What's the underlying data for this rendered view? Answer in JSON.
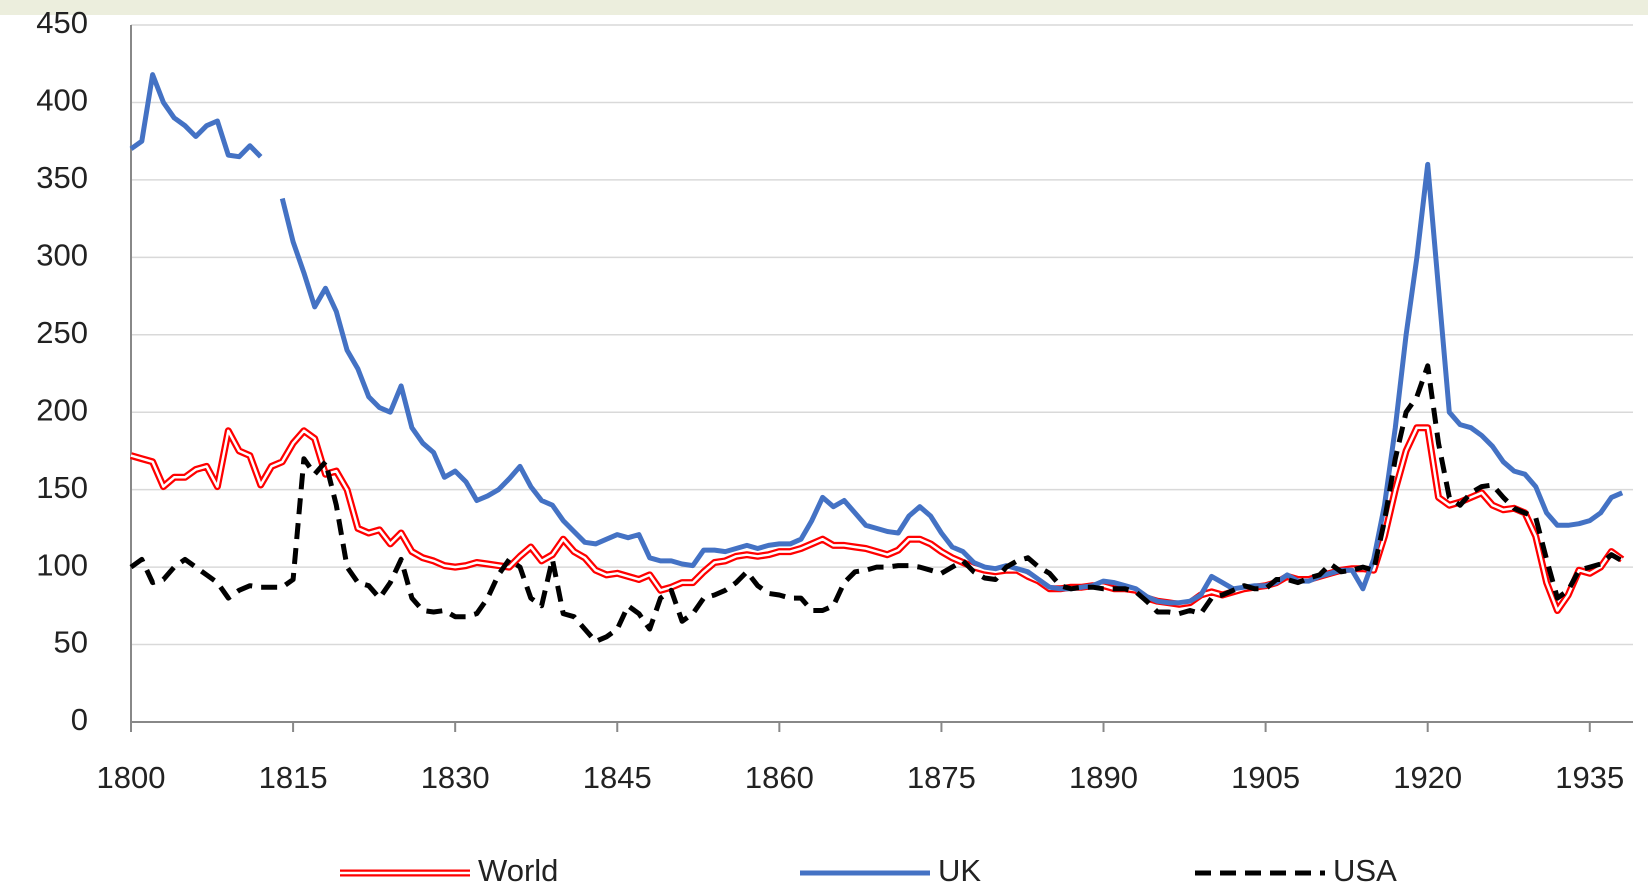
{
  "chart_data": {
    "type": "line",
    "x": [
      1800,
      1801,
      1802,
      1803,
      1804,
      1805,
      1806,
      1807,
      1808,
      1809,
      1810,
      1811,
      1812,
      1813,
      1814,
      1815,
      1816,
      1817,
      1818,
      1819,
      1820,
      1821,
      1822,
      1823,
      1824,
      1825,
      1826,
      1827,
      1828,
      1829,
      1830,
      1831,
      1832,
      1833,
      1834,
      1835,
      1836,
      1837,
      1838,
      1839,
      1840,
      1841,
      1842,
      1843,
      1844,
      1845,
      1846,
      1847,
      1848,
      1849,
      1850,
      1851,
      1852,
      1853,
      1854,
      1855,
      1856,
      1857,
      1858,
      1859,
      1860,
      1861,
      1862,
      1863,
      1864,
      1865,
      1866,
      1867,
      1868,
      1869,
      1870,
      1871,
      1872,
      1873,
      1874,
      1875,
      1876,
      1877,
      1878,
      1879,
      1880,
      1881,
      1882,
      1883,
      1884,
      1885,
      1886,
      1887,
      1888,
      1889,
      1890,
      1891,
      1892,
      1893,
      1894,
      1895,
      1896,
      1897,
      1898,
      1899,
      1900,
      1901,
      1902,
      1903,
      1904,
      1905,
      1906,
      1907,
      1908,
      1909,
      1910,
      1911,
      1912,
      1913,
      1914,
      1915,
      1916,
      1917,
      1918,
      1919,
      1920,
      1921,
      1922,
      1923,
      1924,
      1925,
      1926,
      1927,
      1928,
      1929,
      1930,
      1931,
      1932,
      1933,
      1934,
      1935,
      1936,
      1937,
      1938
    ],
    "series": [
      {
        "name": "World",
        "color": "#ff0000",
        "values": [
          172,
          170,
          168,
          152,
          158,
          158,
          163,
          165,
          152,
          188,
          175,
          172,
          153,
          165,
          168,
          180,
          188,
          183,
          160,
          162,
          150,
          125,
          122,
          124,
          115,
          122,
          110,
          106,
          104,
          101,
          100,
          101,
          103,
          102,
          101,
          100,
          107,
          113,
          104,
          108,
          118,
          110,
          106,
          98,
          95,
          96,
          94,
          92,
          95,
          85,
          87,
          90,
          90,
          97,
          103,
          104,
          107,
          108,
          107,
          108,
          110,
          110,
          112,
          115,
          118,
          114,
          114,
          113,
          112,
          110,
          108,
          111,
          118,
          118,
          115,
          110,
          106,
          103,
          100,
          98,
          97,
          98,
          98,
          94,
          91,
          86,
          86,
          87,
          87,
          88,
          88,
          86,
          86,
          85,
          80,
          78,
          77,
          76,
          77,
          82,
          84,
          82,
          84,
          86,
          87,
          88,
          90,
          94,
          92,
          92,
          94,
          96,
          98,
          99,
          99,
          98,
          120,
          150,
          175,
          190,
          190,
          145,
          140,
          142,
          145,
          148,
          140,
          137,
          138,
          135,
          120,
          90,
          72,
          82,
          98,
          96,
          100,
          110,
          105
        ]
      },
      {
        "name": "UK",
        "color": "#4472c4",
        "values": [
          370,
          375,
          418,
          400,
          390,
          385,
          378,
          385,
          388,
          366,
          365,
          372,
          365,
          null,
          338,
          310,
          290,
          268,
          280,
          265,
          240,
          228,
          210,
          203,
          200,
          217,
          190,
          180,
          174,
          158,
          162,
          155,
          143,
          146,
          150,
          157,
          165,
          152,
          143,
          140,
          130,
          123,
          116,
          115,
          118,
          121,
          119,
          121,
          106,
          104,
          104,
          102,
          101,
          111,
          111,
          110,
          112,
          114,
          112,
          114,
          115,
          115,
          118,
          130,
          145,
          139,
          143,
          135,
          127,
          125,
          123,
          122,
          133,
          139,
          133,
          122,
          113,
          110,
          103,
          100,
          99,
          101,
          99,
          97,
          92,
          87,
          86,
          86,
          87,
          88,
          91,
          90,
          88,
          86,
          81,
          78,
          77,
          77,
          78,
          82,
          94,
          90,
          86,
          87,
          88,
          88,
          90,
          95,
          91,
          91,
          94,
          96,
          98,
          98,
          86,
          105,
          140,
          190,
          250,
          300,
          360,
          280,
          200,
          192,
          190,
          185,
          178,
          168,
          162,
          160,
          152,
          135,
          127,
          127,
          128,
          130,
          135,
          145,
          148
        ]
      },
      {
        "name": "USA",
        "color": "#000000",
        "dashed": true,
        "values": [
          100,
          105,
          90,
          92,
          100,
          105,
          100,
          95,
          90,
          80,
          85,
          88,
          87,
          87,
          87,
          92,
          170,
          160,
          168,
          140,
          100,
          90,
          88,
          80,
          90,
          105,
          80,
          72,
          71,
          72,
          68,
          68,
          70,
          80,
          95,
          105,
          100,
          80,
          75,
          105,
          70,
          68,
          60,
          52,
          55,
          60,
          75,
          70,
          60,
          80,
          85,
          65,
          70,
          80,
          82,
          85,
          90,
          97,
          88,
          83,
          82,
          80,
          80,
          72,
          72,
          75,
          90,
          97,
          98,
          100,
          100,
          101,
          101,
          100,
          98,
          96,
          100,
          104,
          97,
          93,
          92,
          100,
          104,
          106,
          100,
          96,
          88,
          86,
          87,
          87,
          86,
          86,
          86,
          84,
          78,
          71,
          71,
          70,
          72,
          70,
          80,
          82,
          85,
          88,
          86,
          86,
          92,
          92,
          90,
          93,
          95,
          102,
          97,
          98,
          100,
          98,
          130,
          170,
          200,
          210,
          230,
          180,
          145,
          140,
          148,
          152,
          153,
          145,
          138,
          135,
          132,
          105,
          80,
          85,
          98,
          100,
          102,
          108,
          104
        ]
      }
    ],
    "xlim": [
      1800,
      1939
    ],
    "xticks": [
      1800,
      1815,
      1830,
      1845,
      1860,
      1875,
      1890,
      1905,
      1920,
      1935
    ],
    "ylim": [
      0,
      450
    ],
    "yticks": [
      0,
      50,
      100,
      150,
      200,
      250,
      300,
      350,
      400,
      450
    ],
    "grid": true
  }
}
